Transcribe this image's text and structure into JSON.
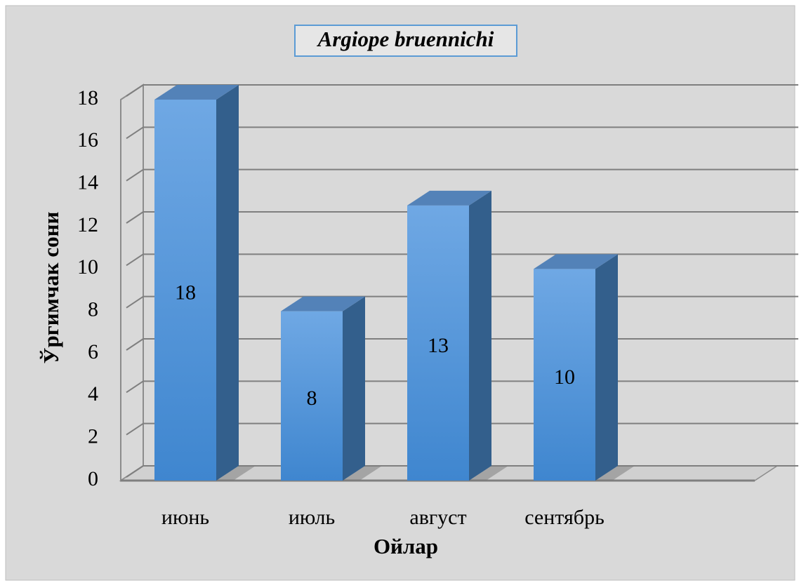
{
  "chart_data": {
    "type": "bar3d",
    "title": "Argiope bruennichi",
    "x_label": "Ойлар",
    "y_label": "Ўргимчак сони",
    "categories": [
      "июнь",
      "июль",
      "август",
      "сентябрь"
    ],
    "values": [
      18,
      8,
      13,
      10
    ],
    "color": "#4a90d9",
    "ylim": [
      0,
      18
    ],
    "yticks": [
      0,
      2,
      4,
      6,
      8,
      10,
      12,
      14,
      16,
      18
    ],
    "grid": true
  }
}
